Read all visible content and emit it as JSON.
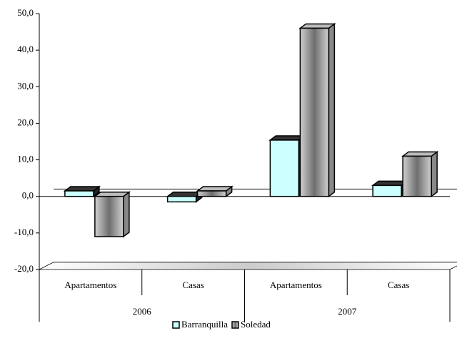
{
  "chart_data": {
    "type": "bar3d",
    "categories": [
      "Apartamentos",
      "Casas",
      "Apartamentos",
      "Casas"
    ],
    "groups": [
      "2006",
      "2007"
    ],
    "series": [
      {
        "name": "Barranquilla",
        "color": "#ccffff",
        "values": [
          1.5,
          -1.5,
          15.4,
          3
        ]
      },
      {
        "name": "Soledad",
        "color": "#a6a6a6",
        "values": [
          -11,
          1.5,
          46,
          11
        ]
      }
    ],
    "ylim": [
      -20,
      50
    ],
    "yticks": [
      {
        "value": -20,
        "label": "-20,0"
      },
      {
        "value": -10,
        "label": "-10,0"
      },
      {
        "value": 0,
        "label": "0,0"
      },
      {
        "value": 10,
        "label": "10,0"
      },
      {
        "value": 20,
        "label": "20,0"
      },
      {
        "value": 30,
        "label": "30,0"
      },
      {
        "value": 40,
        "label": "40,0"
      },
      {
        "value": 50,
        "label": "50,0"
      }
    ],
    "legend": "bottom"
  }
}
